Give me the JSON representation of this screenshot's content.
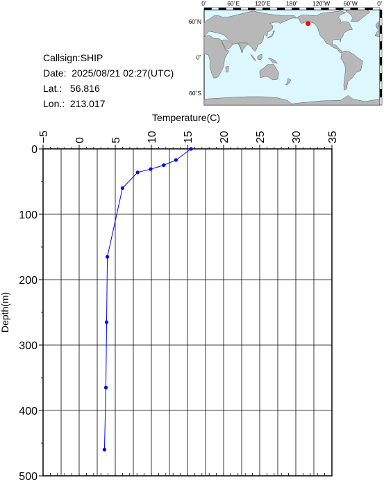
{
  "station": {
    "callsign_label": "Callsign:",
    "callsign": "SHIP",
    "date_label": "Date:",
    "date": "2025/08/21 02:27(UTC)",
    "lat_label": "Lat.:",
    "lat": "56.816",
    "lon_label": "Lon.:",
    "lon": "213.017"
  },
  "map": {
    "lon_ticks": [
      "0˚",
      "60˚E",
      "120˚E",
      "180˚",
      "120˚W",
      "60˚W",
      "0˚"
    ],
    "lat_ticks": [
      "60˚N",
      "0˚",
      "60˚S"
    ],
    "lon_range": [
      0,
      360
    ],
    "lat_range": [
      -80,
      80
    ],
    "marker": {
      "lon": 213.017,
      "lat": 56.816
    },
    "colors": {
      "ocean": "#ddf7ff",
      "land": "#b8b8b8",
      "marker": "#ff0000"
    }
  },
  "chart_data": {
    "type": "line",
    "xlabel": "Temperature(C)",
    "ylabel": "Depth(m)",
    "xlim": [
      -5,
      35
    ],
    "ylim": [
      500,
      0
    ],
    "x_ticks": [
      -5,
      0,
      5,
      10,
      15,
      20,
      25,
      30,
      35
    ],
    "y_ticks": [
      0,
      100,
      200,
      300,
      400,
      500
    ],
    "x_tick_labels": [
      "−5",
      "0",
      "5",
      "10",
      "15",
      "20",
      "25",
      "30",
      "35"
    ],
    "y_tick_labels": [
      "0",
      "100",
      "200",
      "300",
      "400",
      "500"
    ],
    "grid": true,
    "line_color": "#0000ff",
    "series": [
      {
        "temperature": [
          15.5,
          13.4,
          11.7,
          9.9,
          8.1,
          6.0,
          3.9,
          3.8,
          3.7,
          3.5
        ],
        "depth": [
          0,
          17,
          25,
          31,
          36,
          60,
          165,
          265,
          365,
          460
        ]
      }
    ]
  }
}
